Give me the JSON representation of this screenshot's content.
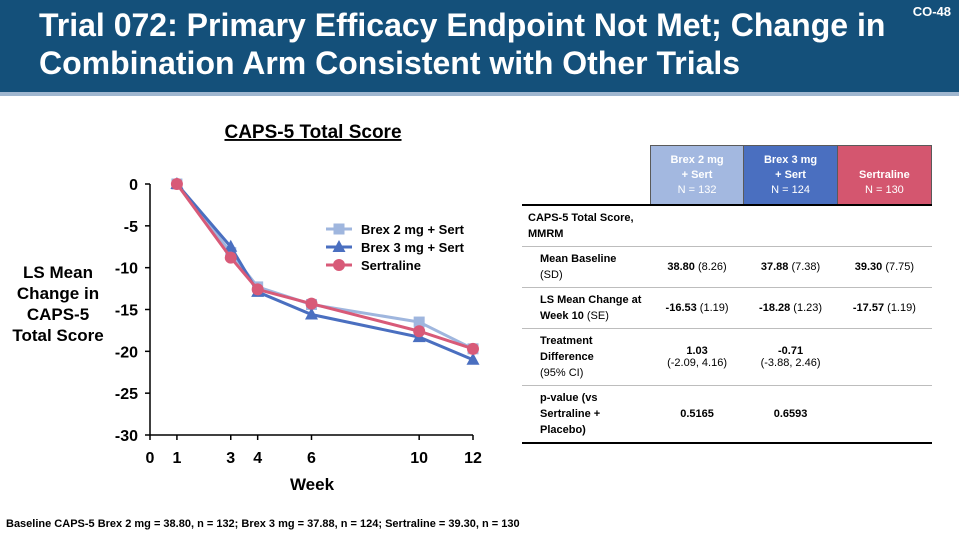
{
  "header": {
    "title": "Trial 072: Primary Efficacy Endpoint Not Met; Change in Combination Arm Consistent with Other Trials",
    "slide_id": "CO-48"
  },
  "chart_data": {
    "type": "line",
    "title": "CAPS-5 Total Score",
    "xlabel": "Week",
    "ylabel": "LS Mean Change in CAPS-5 Total Score",
    "x": [
      1,
      3,
      4,
      6,
      10,
      12
    ],
    "x_ticks": [
      "0",
      "1",
      "3",
      "4",
      "6",
      "10",
      "12"
    ],
    "y_ticks": [
      "0",
      "-5",
      "-10",
      "-15",
      "-20",
      "-25",
      "-30"
    ],
    "xlim": [
      0,
      12
    ],
    "ylim": [
      -30,
      0
    ],
    "legend_position": "right",
    "series": [
      {
        "name": "Brex 2 mg + Sert",
        "marker": "square",
        "color": "#9fb6de",
        "values": [
          0,
          -8.2,
          -12.3,
          -14.4,
          -16.5,
          -19.7
        ]
      },
      {
        "name": "Brex 3 mg + Sert",
        "marker": "triangle",
        "color": "#4a6fc0",
        "values": [
          0,
          -7.5,
          -12.9,
          -15.6,
          -18.3,
          -21.0
        ]
      },
      {
        "name": "Sertraline",
        "marker": "circle",
        "color": "#d85a78",
        "values": [
          0,
          -8.8,
          -12.6,
          -14.3,
          -17.6,
          -19.7
        ]
      }
    ]
  },
  "table": {
    "columns": [
      {
        "label_lines": [
          "Brex 2 mg",
          "+ Sert"
        ],
        "n": "N = 132",
        "color": "#a3b8e0"
      },
      {
        "label_lines": [
          "Brex 3 mg",
          "+ Sert"
        ],
        "n": "N = 124",
        "color": "#4a6fc0"
      },
      {
        "label_lines": [
          "",
          "Sertraline"
        ],
        "n": "N = 130",
        "color": "#d4566f"
      }
    ],
    "section": "CAPS-5 Total Score, MMRM",
    "rows": [
      {
        "label": "Mean Baseline",
        "sub": "(SD)",
        "cells": [
          {
            "bold": "38.80",
            "rest": " (8.26)"
          },
          {
            "bold": "37.88",
            "rest": " (7.38)"
          },
          {
            "bold": "39.30",
            "rest": " (7.75)"
          }
        ]
      },
      {
        "label": "LS Mean Change at Week 10",
        "sub": " (SE)",
        "cells": [
          {
            "bold": "-16.53",
            "rest": " (1.19)"
          },
          {
            "bold": "-18.28",
            "rest": " (1.23)"
          },
          {
            "bold": "-17.57",
            "rest": " (1.19)"
          }
        ]
      },
      {
        "label": "Treatment Difference",
        "sub": "(95% CI)",
        "cells": [
          {
            "bold": "1.03",
            "rest": "(-2.09, 4.16)"
          },
          {
            "bold": "-0.71",
            "rest": "(-3.88, 2.46)"
          },
          {
            "bold": "",
            "rest": ""
          }
        ]
      },
      {
        "label": "p-value (vs Sertraline + Placebo)",
        "sub": "",
        "cells": [
          {
            "bold": "0.5165",
            "rest": ""
          },
          {
            "bold": "0.6593",
            "rest": ""
          },
          {
            "bold": "",
            "rest": ""
          }
        ]
      }
    ]
  },
  "footnote": "Baseline CAPS-5 Brex 2 mg = 38.80, n = 132; Brex 3 mg = 37.88, n = 124; Sertraline = 39.30, n = 130"
}
